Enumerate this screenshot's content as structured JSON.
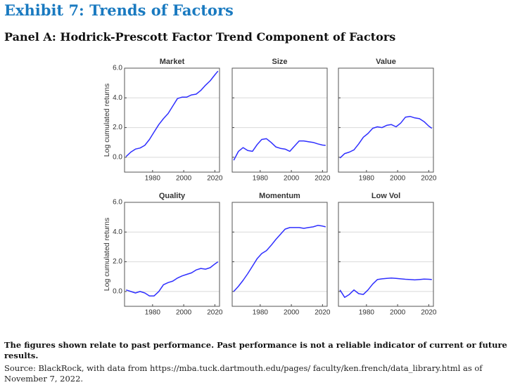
{
  "title": "Exhibit 7: Trends of Factors",
  "subtitle": "Panel A: Hodrick-Prescott Factor Trend Component of Factors",
  "note": "The figures shown relate to past performance. Past performance is not a reliable indicator of current or future results.",
  "source": "Source: BlackRock, with data from https://mba.tuck.dartmouth.edu/pages/ faculty/ken.french/data_library.html as of November 7, 2022.",
  "chart_data": [
    {
      "type": "line",
      "title": "Market",
      "ylabel": "Log cumulated returns",
      "x": [
        1963,
        1966,
        1969,
        1972,
        1975,
        1978,
        1981,
        1984,
        1987,
        1990,
        1993,
        1996,
        1999,
        2002,
        2005,
        2008,
        2011,
        2014,
        2017,
        2020,
        2022
      ],
      "series": [
        {
          "name": "Market",
          "color": "#2f2fff",
          "values": [
            0.05,
            0.35,
            0.55,
            0.62,
            0.8,
            1.2,
            1.7,
            2.2,
            2.6,
            2.95,
            3.45,
            3.95,
            4.05,
            4.05,
            4.2,
            4.25,
            4.5,
            4.85,
            5.15,
            5.55,
            5.8
          ]
        }
      ],
      "xlim": [
        1962,
        2023
      ],
      "ylim": [
        -1,
        6
      ],
      "xticks": [
        1980,
        2000,
        2020
      ],
      "yticks": [
        {
          "value": 0,
          "label": "0.0"
        },
        {
          "value": 2,
          "label": "2.0"
        },
        {
          "value": 4,
          "label": "4.0"
        },
        {
          "value": 6,
          "label": "6.0"
        }
      ],
      "grid": true
    },
    {
      "type": "line",
      "title": "Size",
      "x": [
        1963,
        1966,
        1969,
        1972,
        1975,
        1978,
        1981,
        1984,
        1987,
        1990,
        1993,
        1996,
        1999,
        2002,
        2005,
        2008,
        2011,
        2014,
        2017,
        2020,
        2022
      ],
      "series": [
        {
          "name": "Size",
          "color": "#2f2fff",
          "values": [
            -0.2,
            0.4,
            0.65,
            0.45,
            0.4,
            0.85,
            1.2,
            1.25,
            1.0,
            0.7,
            0.6,
            0.55,
            0.4,
            0.75,
            1.1,
            1.1,
            1.05,
            1.0,
            0.9,
            0.82,
            0.8
          ]
        }
      ],
      "xlim": [
        1962,
        2023
      ],
      "ylim": [
        -1,
        6
      ],
      "xticks": [
        1980,
        2000,
        2020
      ],
      "yticks": [
        0,
        2,
        4,
        6
      ],
      "grid": true
    },
    {
      "type": "line",
      "title": "Value",
      "x": [
        1963,
        1966,
        1969,
        1972,
        1975,
        1978,
        1981,
        1984,
        1987,
        1990,
        1993,
        1996,
        1999,
        2002,
        2005,
        2008,
        2011,
        2014,
        2017,
        2020,
        2022
      ],
      "series": [
        {
          "name": "Value",
          "color": "#2f2fff",
          "values": [
            -0.05,
            0.25,
            0.35,
            0.5,
            0.9,
            1.35,
            1.6,
            1.95,
            2.05,
            2.0,
            2.15,
            2.2,
            2.05,
            2.3,
            2.7,
            2.75,
            2.65,
            2.6,
            2.4,
            2.1,
            1.95
          ]
        }
      ],
      "xlim": [
        1962,
        2023
      ],
      "ylim": [
        -1,
        6
      ],
      "xticks": [
        1980,
        2000,
        2020
      ],
      "yticks": [
        0,
        2,
        4,
        6
      ],
      "grid": true
    },
    {
      "type": "line",
      "title": "Quality",
      "ylabel": "Log cumulated returns",
      "x": [
        1963,
        1966,
        1969,
        1972,
        1975,
        1978,
        1981,
        1984,
        1987,
        1990,
        1993,
        1996,
        1999,
        2002,
        2005,
        2008,
        2011,
        2014,
        2017,
        2020,
        2022
      ],
      "series": [
        {
          "name": "Quality",
          "color": "#2f2fff",
          "values": [
            0.1,
            0.0,
            -0.1,
            0.0,
            -0.1,
            -0.3,
            -0.3,
            0.0,
            0.45,
            0.6,
            0.7,
            0.9,
            1.05,
            1.15,
            1.25,
            1.45,
            1.55,
            1.5,
            1.6,
            1.85,
            2.0
          ]
        }
      ],
      "xlim": [
        1962,
        2023
      ],
      "ylim": [
        -1,
        6
      ],
      "xticks": [
        1980,
        2000,
        2020
      ],
      "yticks": [
        {
          "value": 0,
          "label": "0.0"
        },
        {
          "value": 2,
          "label": "2.0"
        },
        {
          "value": 4,
          "label": "4.0"
        },
        {
          "value": 6,
          "label": "6.0"
        }
      ],
      "grid": true
    },
    {
      "type": "line",
      "title": "Momentum",
      "x": [
        1963,
        1966,
        1969,
        1972,
        1975,
        1978,
        1981,
        1984,
        1987,
        1990,
        1993,
        1996,
        1999,
        2002,
        2005,
        2008,
        2011,
        2014,
        2017,
        2020,
        2022
      ],
      "series": [
        {
          "name": "Momentum",
          "color": "#2f2fff",
          "values": [
            0.0,
            0.35,
            0.75,
            1.2,
            1.7,
            2.2,
            2.55,
            2.75,
            3.1,
            3.5,
            3.85,
            4.2,
            4.3,
            4.3,
            4.3,
            4.25,
            4.3,
            4.35,
            4.45,
            4.4,
            4.35
          ]
        }
      ],
      "xlim": [
        1962,
        2023
      ],
      "ylim": [
        -1,
        6
      ],
      "xticks": [
        1980,
        2000,
        2020
      ],
      "yticks": [
        0,
        2,
        4,
        6
      ],
      "grid": true
    },
    {
      "type": "line",
      "title": "Low Vol",
      "x": [
        1963,
        1966,
        1969,
        1972,
        1975,
        1978,
        1981,
        1984,
        1987,
        1990,
        1993,
        1996,
        1999,
        2002,
        2005,
        2008,
        2011,
        2014,
        2017,
        2020,
        2022
      ],
      "series": [
        {
          "name": "Low Vol",
          "color": "#2f2fff",
          "values": [
            0.1,
            -0.4,
            -0.2,
            0.1,
            -0.15,
            -0.2,
            0.1,
            0.5,
            0.8,
            0.85,
            0.88,
            0.9,
            0.88,
            0.85,
            0.82,
            0.8,
            0.78,
            0.8,
            0.83,
            0.82,
            0.8
          ]
        }
      ],
      "xlim": [
        1962,
        2023
      ],
      "ylim": [
        -1,
        6
      ],
      "xticks": [
        1980,
        2000,
        2020
      ],
      "yticks": [
        0,
        2,
        4,
        6
      ],
      "grid": true
    }
  ]
}
